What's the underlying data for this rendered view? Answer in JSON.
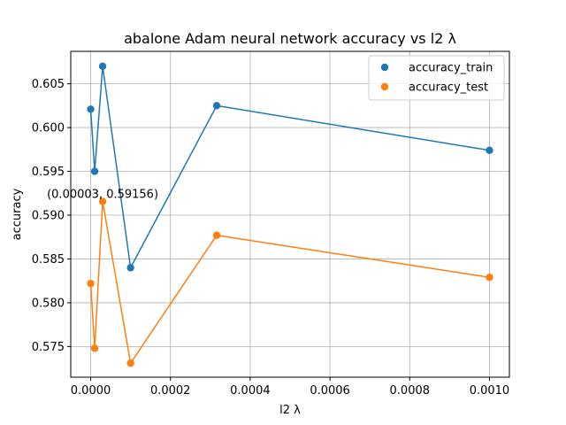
{
  "chart_data": {
    "type": "line",
    "title": "abalone Adam neural network accuracy vs l2 λ",
    "xlabel": "l2 λ",
    "ylabel": "accuracy",
    "xlim": [
      -5e-05,
      0.00105
    ],
    "ylim": [
      0.5715,
      0.6087
    ],
    "x_ticks": [
      0.0,
      0.0002,
      0.0004,
      0.0006,
      0.0008,
      0.001
    ],
    "x_tick_labels": [
      "0.0000",
      "0.0002",
      "0.0004",
      "0.0006",
      "0.0008",
      "0.0010"
    ],
    "y_ticks": [
      0.575,
      0.58,
      0.585,
      0.59,
      0.595,
      0.6,
      0.605
    ],
    "y_tick_labels": [
      "0.575",
      "0.580",
      "0.585",
      "0.590",
      "0.595",
      "0.600",
      "0.605"
    ],
    "grid": true,
    "legend_position": "top-right",
    "x": [
      0.0,
      1e-05,
      3e-05,
      0.0001,
      0.000316,
      0.001
    ],
    "series": [
      {
        "name": "accuracy_train",
        "color": "#1f77b4",
        "values": [
          0.6021,
          0.595,
          0.607,
          0.584,
          0.6025,
          0.5974
        ]
      },
      {
        "name": "accuracy_test",
        "color": "#ff7f0e",
        "values": [
          0.5822,
          0.5748,
          0.59156,
          0.5731,
          0.5877,
          0.5829
        ]
      }
    ],
    "annotations": [
      {
        "text": "(0.00003, 0.59156)",
        "x": 3e-05,
        "y": 0.59156
      }
    ]
  }
}
